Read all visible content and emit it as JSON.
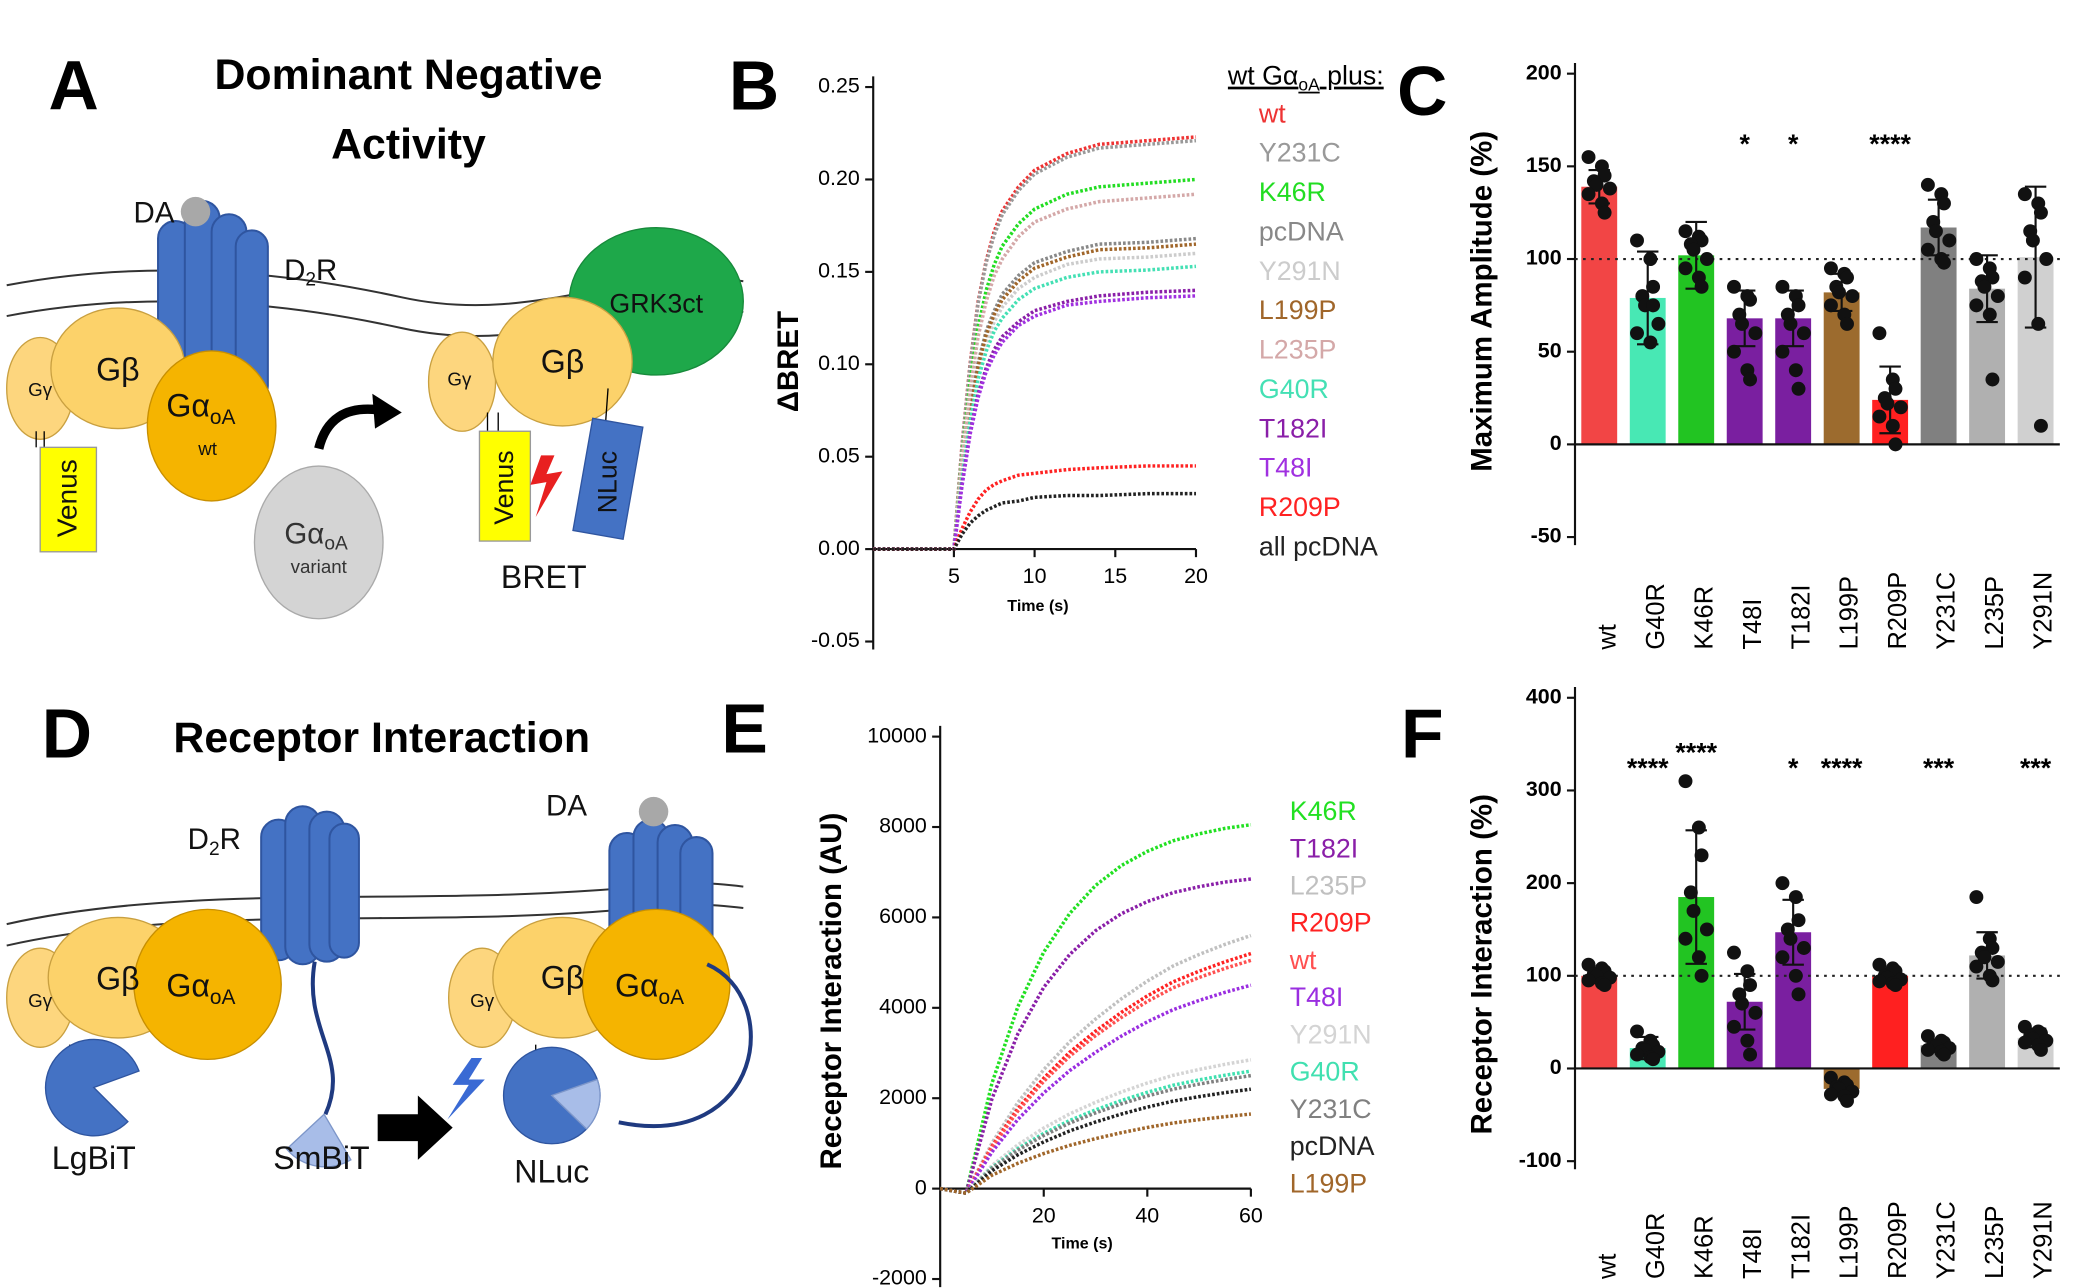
{
  "panel_labels": [
    "A",
    "B",
    "C",
    "D",
    "E",
    "F"
  ],
  "diagram_a": {
    "title": [
      "Dominant Negative",
      "Activity"
    ],
    "labels": [
      [
        "DA"
      ],
      [
        "D",
        "2",
        "R"
      ],
      [
        "Gγ"
      ],
      [
        "Gβ"
      ],
      [
        "Gα",
        "oA"
      ],
      [
        "wt"
      ],
      [
        "Venus"
      ],
      [
        "Gα",
        "oA"
      ],
      [
        "variant"
      ],
      [
        "Gγ"
      ],
      [
        "Gβ"
      ],
      [
        "GRK3ct"
      ],
      [
        "Venus"
      ],
      [
        "NLuc"
      ],
      [
        "BRET"
      ]
    ]
  },
  "diagram_d": {
    "title": [
      "Receptor Interaction"
    ],
    "labels": [
      [
        "D",
        "2",
        "R"
      ],
      [
        "Gγ"
      ],
      [
        "Gβ"
      ],
      [
        "Gα",
        "oA"
      ],
      [
        "LgBiT"
      ],
      [
        "SmBiT"
      ],
      [
        "DA"
      ],
      [
        "Gγ"
      ],
      [
        "Gβ"
      ],
      [
        "Gα",
        "oA"
      ],
      [
        "NLuc"
      ]
    ]
  },
  "chart_data": [
    {
      "type": "line",
      "y_label": "ΔBRET",
      "x_label": "Time (s)",
      "legend_title": [
        "wt Gα",
        "oA",
        " plus:"
      ],
      "x": [
        0,
        2,
        4,
        5,
        5.5,
        6,
        6.5,
        7,
        7.5,
        8,
        9,
        10,
        12,
        14,
        17,
        20
      ],
      "xlim": [
        0,
        20
      ],
      "xticks": [
        5,
        10,
        15,
        20
      ],
      "ylim": [
        -0.05,
        0.25
      ],
      "yticks": [
        -0.05,
        {
          "value": 0,
          "label": "0.00"
        },
        0.05,
        {
          "value": 0.1,
          "label": "0.10"
        },
        0.15,
        {
          "value": 0.2,
          "label": "0.20"
        },
        0.25
      ],
      "series": [
        {
          "name": "wt",
          "color": "#ee3333",
          "values": [
            0,
            0,
            0,
            0,
            0.056,
            0.1,
            0.134,
            0.156,
            0.172,
            0.183,
            0.196,
            0.205,
            0.214,
            0.219,
            0.221,
            0.223
          ]
        },
        {
          "name": "Y231C",
          "color": "#999999",
          "values": [
            0,
            0,
            0,
            0,
            0.055,
            0.099,
            0.133,
            0.155,
            0.17,
            0.181,
            0.194,
            0.203,
            0.212,
            0.217,
            0.219,
            0.221
          ]
        },
        {
          "name": "K46R",
          "color": "#22dd22",
          "values": [
            0,
            0,
            0,
            0,
            0.05,
            0.09,
            0.12,
            0.14,
            0.154,
            0.164,
            0.176,
            0.184,
            0.192,
            0.196,
            0.198,
            0.2
          ]
        },
        {
          "name": "pcDNA",
          "color": "#888888",
          "values": [
            0,
            0,
            0,
            0,
            0.042,
            0.076,
            0.101,
            0.118,
            0.129,
            0.138,
            0.148,
            0.155,
            0.161,
            0.165,
            0.166,
            0.168
          ]
        },
        {
          "name": "Y291N",
          "color": "#cccccc",
          "values": [
            0,
            0,
            0,
            0,
            0.04,
            0.072,
            0.096,
            0.112,
            0.123,
            0.131,
            0.141,
            0.147,
            0.154,
            0.157,
            0.158,
            0.16
          ]
        },
        {
          "name": "L199P",
          "color": "#a0662a",
          "values": [
            0,
            0,
            0,
            0,
            0.041,
            0.074,
            0.099,
            0.116,
            0.127,
            0.135,
            0.145,
            0.152,
            0.158,
            0.162,
            0.163,
            0.165
          ]
        },
        {
          "name": "L235P",
          "color": "#d4a8a8",
          "values": [
            0,
            0,
            0,
            0,
            0.048,
            0.086,
            0.115,
            0.134,
            0.148,
            0.157,
            0.169,
            0.177,
            0.184,
            0.188,
            0.19,
            0.192
          ]
        },
        {
          "name": "G40R",
          "color": "#44e0b4",
          "values": [
            0,
            0,
            0,
            0,
            0.038,
            0.069,
            0.092,
            0.107,
            0.118,
            0.125,
            0.135,
            0.141,
            0.147,
            0.15,
            0.151,
            0.153
          ]
        },
        {
          "name": "T182I",
          "color": "#8a1fa8",
          "values": [
            0,
            0,
            0,
            0,
            0.035,
            0.063,
            0.084,
            0.098,
            0.108,
            0.115,
            0.123,
            0.129,
            0.134,
            0.137,
            0.139,
            0.14
          ]
        },
        {
          "name": "T48I",
          "color": "#a030e0",
          "values": [
            0,
            0,
            0,
            0,
            0.034,
            0.062,
            0.082,
            0.096,
            0.105,
            0.112,
            0.121,
            0.126,
            0.132,
            0.134,
            0.136,
            0.137
          ]
        },
        {
          "name": "R209P",
          "color": "#ff2222",
          "values": [
            0,
            0,
            0,
            0,
            0.011,
            0.02,
            0.027,
            0.032,
            0.035,
            0.037,
            0.04,
            0.041,
            0.043,
            0.044,
            0.045,
            0.045
          ]
        },
        {
          "name": "all pcDNA",
          "color": "#222222",
          "values": [
            0,
            0,
            0,
            0,
            0.008,
            0.014,
            0.018,
            0.021,
            0.023,
            0.025,
            0.026,
            0.028,
            0.029,
            0.029,
            0.03,
            0.03
          ]
        }
      ]
    },
    {
      "type": "bar",
      "y_label": "Maximum Amplitude (%)",
      "categories": [
        "wt",
        "G40R",
        "K46R",
        "T48I",
        "T182I",
        "L199P",
        "R209P",
        "Y231C",
        "L235P",
        "Y291N"
      ],
      "values": [
        139,
        79,
        102,
        68,
        68,
        82,
        24,
        117,
        84,
        101
      ],
      "errors": [
        9,
        25,
        18,
        15,
        15,
        10,
        18,
        15,
        18,
        38
      ],
      "points": [
        [
          155,
          150,
          145,
          142,
          140,
          138,
          135,
          130,
          125
        ],
        [
          110,
          100,
          85,
          80,
          75,
          65,
          60,
          55,
          75
        ],
        [
          115,
          112,
          110,
          108,
          105,
          100,
          95,
          90,
          85
        ],
        [
          85,
          80,
          78,
          70,
          65,
          60,
          50,
          40,
          35
        ],
        [
          85,
          80,
          75,
          70,
          65,
          60,
          50,
          40,
          30
        ],
        [
          95,
          92,
          90,
          85,
          82,
          80,
          75,
          70,
          65
        ],
        [
          60,
          35,
          30,
          25,
          22,
          20,
          15,
          10,
          0
        ],
        [
          140,
          135,
          130,
          120,
          115,
          110,
          105,
          100,
          98
        ],
        [
          100,
          95,
          90,
          88,
          85,
          80,
          75,
          70,
          35
        ],
        [
          135,
          130,
          125,
          115,
          110,
          100,
          90,
          65,
          10
        ]
      ],
      "colors": [
        "#f24545",
        "#48e8b4",
        "#22c422",
        "#7a1fa0",
        "#7a1fa0",
        "#9c6b2e",
        "#ff2020",
        "#808080",
        "#b0b0b0",
        "#d0d0d0"
      ],
      "significance": [
        null,
        null,
        null,
        "*",
        "*",
        null,
        "****",
        null,
        null,
        null
      ],
      "reference_line": 100,
      "ylim": [
        -50,
        200
      ],
      "yticks": [
        -50,
        0,
        50,
        100,
        150,
        200
      ]
    },
    {
      "type": "line",
      "y_label": "Receptor Interaction (AU)",
      "x_label": "Time (s)",
      "x": [
        0,
        5,
        10,
        15,
        20,
        25,
        30,
        35,
        40,
        45,
        50,
        55,
        60
      ],
      "xlim": [
        0,
        60
      ],
      "xticks": [
        20,
        40,
        60
      ],
      "ylim": [
        -2000,
        10000
      ],
      "yticks": [
        -2000,
        0,
        2000,
        4000,
        6000,
        8000,
        10000
      ],
      "series": [
        {
          "name": "K46R",
          "color": "#22e022",
          "values": [
            0,
            -100,
            2335,
            4025,
            5233,
            6086,
            6706,
            7148,
            7462,
            7696,
            7849,
            7970,
            8050
          ]
        },
        {
          "name": "T182I",
          "color": "#8a1fa8",
          "values": [
            0,
            -100,
            1987,
            3425,
            4453,
            5179,
            5706,
            6083,
            6350,
            6549,
            6679,
            6782,
            6850
          ]
        },
        {
          "name": "L235P",
          "color": "#c0c0c0",
          "values": [
            0,
            -100,
            1008,
            1904,
            2632,
            3248,
            3752,
            4200,
            4592,
            4928,
            5180,
            5404,
            5600
          ]
        },
        {
          "name": "R209P",
          "color": "#ff2222",
          "values": [
            0,
            -100,
            936,
            1768,
            2444,
            3016,
            3484,
            3900,
            4264,
            4576,
            4810,
            5018,
            5200
          ]
        },
        {
          "name": "wt",
          "color": "#ff5050",
          "values": [
            0,
            -100,
            909,
            1717,
            2374,
            2929,
            3384,
            3788,
            4141,
            4444,
            4671,
            4873,
            5050
          ]
        },
        {
          "name": "T48I",
          "color": "#9a2ee0",
          "values": [
            0,
            -100,
            810,
            1530,
            2115,
            2610,
            3015,
            3375,
            3690,
            3960,
            4163,
            4343,
            4500
          ]
        },
        {
          "name": "Y291N",
          "color": "#d4d4d4",
          "values": [
            0,
            -100,
            513,
            969,
            1340,
            1653,
            1910,
            2138,
            2337,
            2508,
            2636,
            2750,
            2850
          ]
        },
        {
          "name": "G40R",
          "color": "#40e0b0",
          "values": [
            0,
            -100,
            468,
            884,
            1222,
            1508,
            1742,
            1950,
            2132,
            2288,
            2405,
            2509,
            2600
          ]
        },
        {
          "name": "Y231C",
          "color": "#808080",
          "values": [
            0,
            -100,
            450,
            850,
            1175,
            1450,
            1675,
            1875,
            2050,
            2200,
            2313,
            2413,
            2500
          ]
        },
        {
          "name": "pcDNA",
          "color": "#222222",
          "values": [
            0,
            -100,
            396,
            748,
            1034,
            1276,
            1474,
            1650,
            1804,
            1936,
            2035,
            2123,
            2200
          ]
        },
        {
          "name": "L199P",
          "color": "#a0662a",
          "values": [
            0,
            -100,
            297,
            561,
            776,
            957,
            1106,
            1238,
            1353,
            1452,
            1526,
            1592,
            1650
          ]
        }
      ]
    },
    {
      "type": "bar",
      "y_label": "Receptor Interaction (%)",
      "categories": [
        "wt",
        "G40R",
        "K46R",
        "T48I",
        "T182I",
        "L199P",
        "R209P",
        "Y231C",
        "L235P",
        "Y291N"
      ],
      "values": [
        100,
        22,
        185,
        72,
        147,
        -22,
        100,
        25,
        122,
        33
      ],
      "errors": [
        8,
        12,
        72,
        30,
        35,
        8,
        8,
        5,
        25,
        10
      ],
      "points": [
        [
          112,
          108,
          105,
          102,
          100,
          98,
          95,
          92,
          90
        ],
        [
          40,
          30,
          25,
          22,
          20,
          18,
          15,
          12,
          10
        ],
        [
          310,
          260,
          230,
          190,
          170,
          150,
          140,
          120,
          100
        ],
        [
          125,
          105,
          90,
          80,
          70,
          60,
          45,
          30,
          15
        ],
        [
          200,
          185,
          160,
          150,
          140,
          130,
          120,
          100,
          80
        ],
        [
          -10,
          -15,
          -18,
          -20,
          -22,
          -25,
          -28,
          -30,
          -35
        ],
        [
          112,
          108,
          105,
          100,
          98,
          96,
          94,
          92,
          90
        ],
        [
          35,
          30,
          28,
          25,
          24,
          22,
          20,
          18,
          15
        ],
        [
          185,
          140,
          130,
          125,
          120,
          115,
          110,
          100,
          95
        ],
        [
          45,
          40,
          38,
          35,
          32,
          30,
          28,
          25,
          20
        ]
      ],
      "colors": [
        "#f24545",
        "#48e8b4",
        "#22c422",
        "#7a1fa0",
        "#7a1fa0",
        "#9c6b2e",
        "#ff2020",
        "#808080",
        "#b0b0b0",
        "#d0d0d0"
      ],
      "significance": [
        null,
        "****",
        "****",
        null,
        "*",
        "****",
        null,
        "***",
        null,
        "***"
      ],
      "reference_line": 100,
      "ylim": [
        -100,
        400
      ],
      "yticks": [
        -100,
        0,
        100,
        200,
        300,
        400
      ]
    }
  ]
}
